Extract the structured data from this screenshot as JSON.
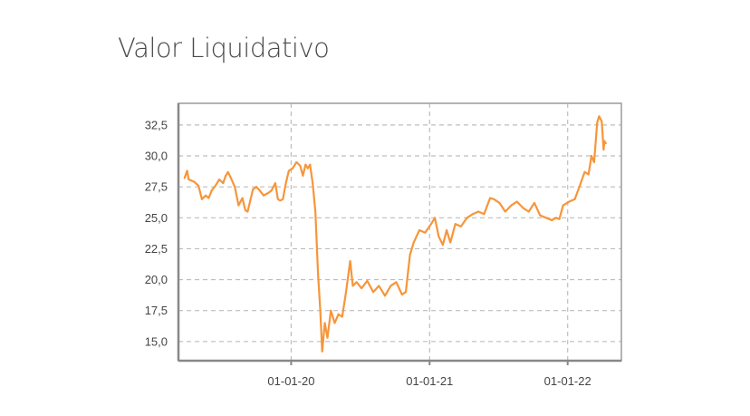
{
  "chart_data": {
    "type": "line",
    "title": "Valor Liquidativo",
    "xlabel": "",
    "ylabel": "",
    "xlim": [
      "2019-03-09",
      "2022-05-23"
    ],
    "ylim": [
      13.45,
      34.25
    ],
    "grid": true,
    "line_color": "#f7953a",
    "y_ticks": [
      15.0,
      17.5,
      20.0,
      22.5,
      25.0,
      27.5,
      30.0,
      32.5
    ],
    "y_tick_labels": [
      "15,0",
      "17,5",
      "20,0",
      "22,5",
      "25,0",
      "27,5",
      "30,0",
      "32,5"
    ],
    "x_ticks": [
      "2020-01-01",
      "2021-01-01",
      "2022-01-01"
    ],
    "x_tick_labels": [
      "01-01-20",
      "01-01-21",
      "01-01-22"
    ],
    "series": [
      {
        "x": [
          "2019-03-25",
          "2019-04-01",
          "2019-04-05",
          "2019-04-12",
          "2019-04-20",
          "2019-05-01",
          "2019-05-10",
          "2019-05-20",
          "2019-05-28",
          "2019-06-05",
          "2019-06-15",
          "2019-06-25",
          "2019-07-05",
          "2019-07-12",
          "2019-07-18",
          "2019-07-26",
          "2019-08-05",
          "2019-08-15",
          "2019-08-25",
          "2019-09-02",
          "2019-09-08",
          "2019-09-15",
          "2019-09-22",
          "2019-10-01",
          "2019-10-10",
          "2019-10-20",
          "2019-11-01",
          "2019-11-10",
          "2019-11-20",
          "2019-11-27",
          "2019-12-03",
          "2019-12-10",
          "2019-12-18",
          "2019-12-26",
          "2020-01-05",
          "2020-01-15",
          "2020-01-25",
          "2020-02-01",
          "2020-02-08",
          "2020-02-14",
          "2020-02-20",
          "2020-02-27",
          "2020-03-05",
          "2020-03-12",
          "2020-03-18",
          "2020-03-23",
          "2020-03-30",
          "2020-04-06",
          "2020-04-15",
          "2020-04-25",
          "2020-05-05",
          "2020-05-15",
          "2020-05-25",
          "2020-06-05",
          "2020-06-12",
          "2020-06-22",
          "2020-07-05",
          "2020-07-20",
          "2020-08-05",
          "2020-08-20",
          "2020-09-05",
          "2020-09-20",
          "2020-10-05",
          "2020-10-20",
          "2020-10-30",
          "2020-11-10",
          "2020-11-20",
          "2020-12-05",
          "2020-12-20",
          "2021-01-05",
          "2021-01-15",
          "2021-01-25",
          "2021-02-05",
          "2021-02-15",
          "2021-02-25",
          "2021-03-10",
          "2021-03-25",
          "2021-04-10",
          "2021-04-25",
          "2021-05-10",
          "2021-05-25",
          "2021-06-10",
          "2021-06-20",
          "2021-07-05",
          "2021-07-20",
          "2021-08-05",
          "2021-08-20",
          "2021-09-05",
          "2021-09-20",
          "2021-10-05",
          "2021-10-20",
          "2021-11-05",
          "2021-11-20",
          "2021-12-01",
          "2021-12-10",
          "2021-12-20",
          "2022-01-05",
          "2022-01-20",
          "2022-02-01",
          "2022-02-15",
          "2022-02-25",
          "2022-03-05",
          "2022-03-12",
          "2022-03-20",
          "2022-03-25",
          "2022-04-01",
          "2022-04-06",
          "2022-04-08",
          "2022-04-12"
        ],
        "values": [
          28.2,
          28.8,
          28.1,
          28.0,
          27.9,
          27.6,
          26.5,
          26.8,
          26.6,
          27.2,
          27.6,
          28.1,
          27.8,
          28.4,
          28.7,
          28.2,
          27.5,
          26.0,
          26.6,
          25.6,
          25.5,
          26.4,
          27.3,
          27.5,
          27.2,
          26.8,
          27.0,
          27.2,
          27.8,
          26.5,
          26.4,
          26.5,
          27.8,
          28.8,
          29.0,
          29.5,
          29.2,
          28.4,
          29.3,
          29.0,
          29.3,
          27.8,
          25.5,
          20.5,
          17.5,
          14.2,
          16.5,
          15.3,
          17.5,
          16.5,
          17.2,
          17.0,
          19.0,
          21.5,
          19.5,
          19.8,
          19.3,
          19.9,
          19.0,
          19.5,
          18.7,
          19.5,
          19.8,
          18.8,
          19.0,
          22.0,
          23.0,
          24.0,
          23.8,
          24.5,
          25.0,
          23.5,
          22.8,
          24.0,
          23.0,
          24.5,
          24.3,
          25.0,
          25.3,
          25.5,
          25.3,
          26.6,
          26.5,
          26.2,
          25.5,
          26.0,
          26.3,
          25.8,
          25.5,
          26.2,
          25.2,
          25.0,
          24.8,
          25.0,
          24.9,
          26.0,
          26.3,
          26.5,
          27.5,
          28.7,
          28.5,
          30.0,
          29.5,
          32.7,
          33.2,
          32.8,
          30.5,
          31.2,
          31.0
        ]
      }
    ]
  }
}
